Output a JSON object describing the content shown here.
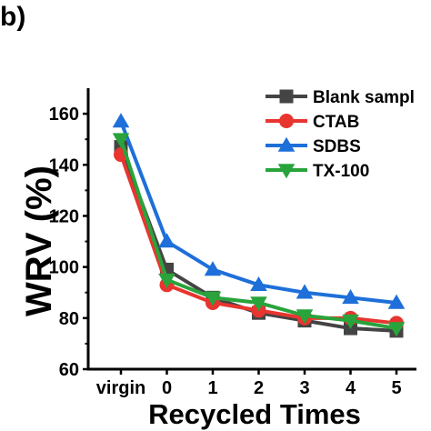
{
  "panel_label": "b)",
  "chart_data": {
    "type": "line",
    "title": "",
    "xlabel": "Recycled Times",
    "ylabel": "WRV (%)",
    "categories": [
      "virgin",
      "0",
      "1",
      "2",
      "3",
      "4",
      "5"
    ],
    "ylim": [
      60,
      170
    ],
    "yticks": [
      60,
      80,
      100,
      120,
      140,
      160
    ],
    "grid": false,
    "legend_position": "top-right",
    "series": [
      {
        "name": "Blank sampl",
        "color": "#444444",
        "marker": "square",
        "values": [
          147,
          99,
          88,
          82,
          79,
          76,
          75
        ]
      },
      {
        "name": "CTAB",
        "color": "#e8352f",
        "marker": "circle",
        "values": [
          144,
          93,
          86,
          83,
          80,
          80,
          78
        ]
      },
      {
        "name": "SDBS",
        "color": "#1e6fd9",
        "marker": "triangle-up",
        "values": [
          157,
          110,
          99,
          93,
          90,
          88,
          86
        ]
      },
      {
        "name": "TX-100",
        "color": "#29a33b",
        "marker": "triangle-down",
        "values": [
          150,
          95,
          88,
          86,
          81,
          79,
          76
        ]
      }
    ]
  }
}
